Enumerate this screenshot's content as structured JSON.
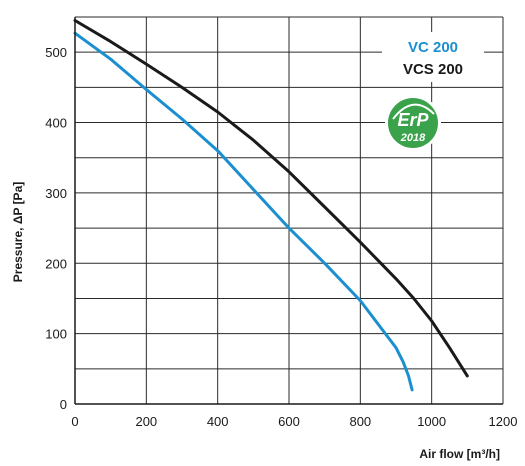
{
  "chart_data": {
    "type": "line",
    "title": "",
    "xlabel": "Air flow [m³/h]",
    "ylabel": "Pressure, ΔP [Pa]",
    "xlim": [
      0,
      1200
    ],
    "ylim": [
      0,
      550
    ],
    "x_ticks": [
      0,
      200,
      400,
      600,
      800,
      1000,
      1200
    ],
    "y_ticks": [
      0,
      100,
      200,
      300,
      400,
      500
    ],
    "x_tick_labels": [
      "0",
      "200",
      "400",
      "600",
      "800",
      "1000",
      "1200"
    ],
    "y_tick_labels": [
      "0",
      "100",
      "200",
      "300",
      "400",
      "500"
    ],
    "x_grid": [
      0,
      200,
      400,
      600,
      800,
      1000,
      1200
    ],
    "y_grid": [
      0,
      50,
      100,
      150,
      200,
      250,
      300,
      350,
      400,
      450,
      500,
      550
    ],
    "grid": true,
    "legend_position": "top-right",
    "series": [
      {
        "name": "VC 200",
        "color": "#1b8fcf",
        "x": [
          0,
          100,
          200,
          300,
          400,
          500,
          600,
          700,
          800,
          870,
          900,
          920,
          935,
          945
        ],
        "y": [
          527,
          490,
          447,
          405,
          360,
          305,
          250,
          200,
          147,
          100,
          80,
          60,
          40,
          20
        ]
      },
      {
        "name": "VCS 200",
        "color": "#1a1a1a",
        "x": [
          0,
          100,
          200,
          300,
          400,
          500,
          600,
          700,
          800,
          900,
          950,
          1000,
          1050,
          1100
        ],
        "y": [
          545,
          515,
          483,
          450,
          415,
          375,
          330,
          280,
          230,
          178,
          150,
          118,
          80,
          40
        ]
      }
    ]
  },
  "badge": {
    "text": "ErP",
    "year": "2018",
    "color": "#3aa24a"
  }
}
